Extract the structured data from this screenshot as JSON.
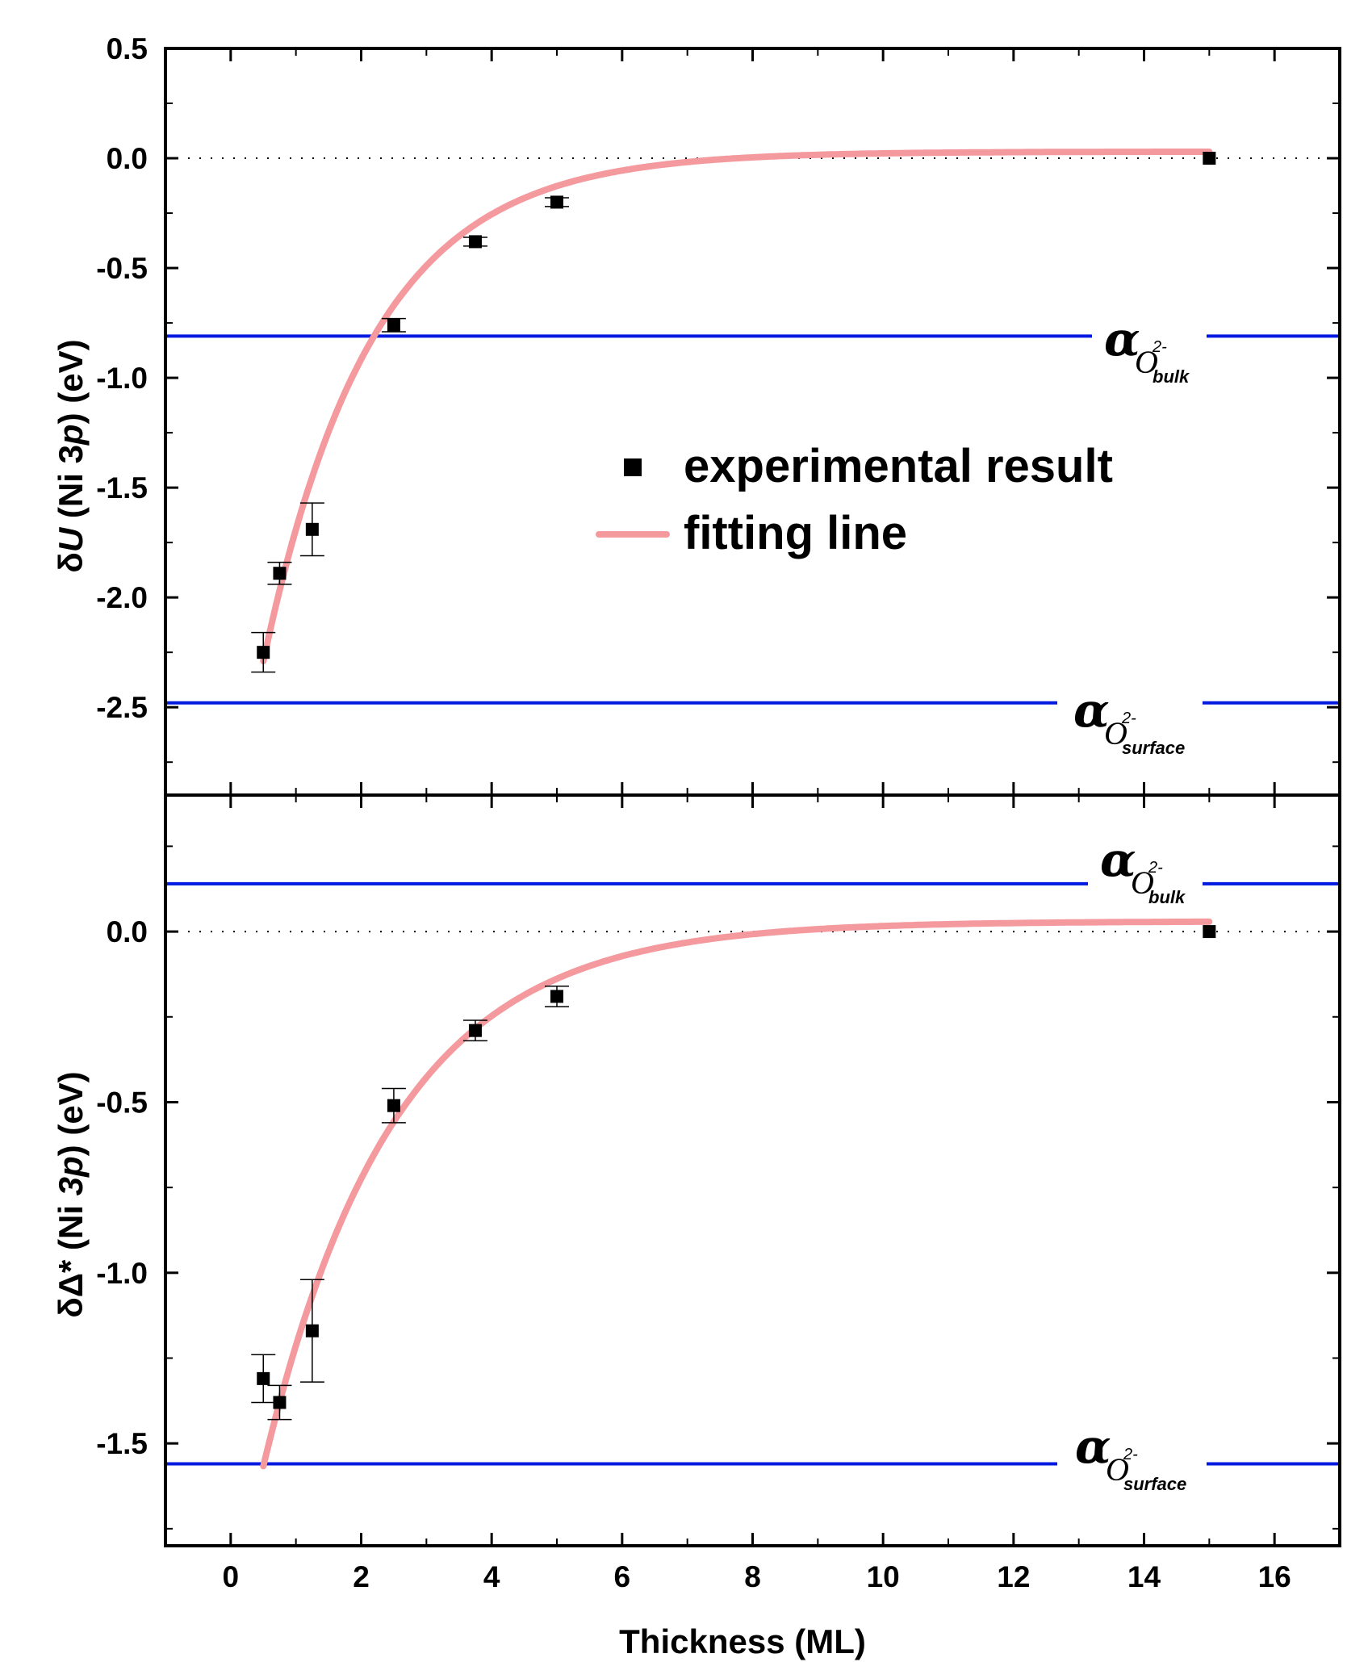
{
  "chart_data": {
    "type": "scatter",
    "xlabel": "Thickness (ML)",
    "xlim": [
      -1,
      17
    ],
    "x_ticks": [
      "0",
      "2",
      "4",
      "6",
      "8",
      "10",
      "12",
      "14",
      "16"
    ],
    "legend": {
      "position": "inside-right of top panel",
      "entries": [
        {
          "symbol": "square",
          "label": "experimental result"
        },
        {
          "symbol": "line",
          "label": "fitting line"
        }
      ]
    },
    "colors": {
      "marker": "#000000",
      "fit": "#f4999d",
      "reference": "#0019e0",
      "zero_line": "#000000"
    },
    "panels": [
      {
        "ylabel_prefix": "δ",
        "ylabel_italic": "U",
        "ylabel_mid": " (Ni 3",
        "ylabel_italic2": "p",
        "ylabel_suffix": ") (eV)",
        "ylim": [
          -2.9,
          0.5
        ],
        "y_ticks": [
          "0.5",
          "0.0",
          "-0.5",
          "-1.0",
          "-1.5",
          "-2.0",
          "-2.5"
        ],
        "experimental": {
          "x": [
            0.5,
            0.75,
            1.25,
            2.5,
            3.75,
            5.0,
            15.0
          ],
          "y": [
            -2.25,
            -1.89,
            -1.69,
            -0.76,
            -0.38,
            -0.2,
            0.0
          ],
          "err": [
            0.09,
            0.05,
            0.12,
            0.03,
            0.02,
            0.02,
            0.0
          ]
        },
        "fit": {
          "model": "y = y0 + A*exp(-x/t)",
          "y0": 0.03,
          "A": -3.13,
          "t": 1.67,
          "x_range": [
            0.5,
            15.0
          ]
        },
        "reference_lines": [
          {
            "y": -0.81,
            "symbol": "α",
            "ion": "O",
            "sup": "2-",
            "sub": "bulk"
          },
          {
            "y": -2.48,
            "symbol": "α",
            "ion": "O",
            "sup": "2-",
            "sub": "surface"
          }
        ]
      },
      {
        "ylabel_prefix": "δΔ*",
        "ylabel_italic": "",
        "ylabel_mid": " (Ni ",
        "ylabel_italic2": "3p",
        "ylabel_suffix": ") (eV)",
        "ylim": [
          -1.8,
          0.4
        ],
        "y_ticks": [
          "0.0",
          "-0.5",
          "-1.0",
          "-1.5"
        ],
        "experimental": {
          "x": [
            0.5,
            0.75,
            1.25,
            2.5,
            3.75,
            5.0,
            15.0
          ],
          "y": [
            -1.31,
            -1.38,
            -1.17,
            -0.51,
            -0.29,
            -0.19,
            0.0
          ],
          "err": [
            0.07,
            0.05,
            0.15,
            0.05,
            0.03,
            0.03,
            0.0
          ]
        },
        "fit": {
          "model": "y = y0 + A*exp(-x/t)",
          "y0": 0.03,
          "A": -2.05,
          "t": 2.0,
          "x_range": [
            0.5,
            15.0
          ]
        },
        "reference_lines": [
          {
            "y": 0.14,
            "symbol": "α",
            "ion": "O",
            "sup": "2-",
            "sub": "bulk"
          },
          {
            "y": -1.56,
            "symbol": "α",
            "ion": "O",
            "sup": "2-",
            "sub": "surface"
          }
        ]
      }
    ]
  }
}
